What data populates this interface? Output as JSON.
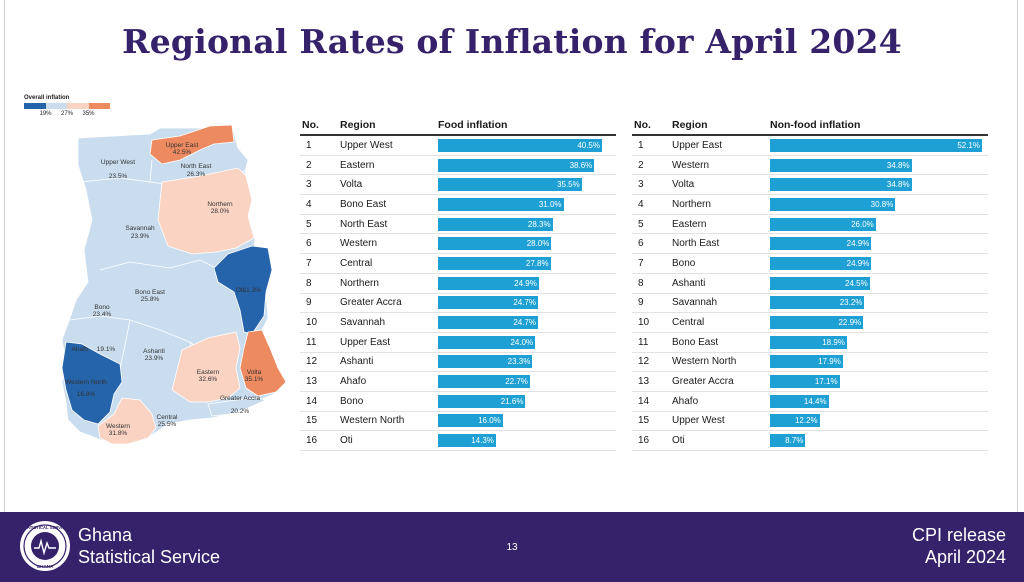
{
  "title": "Regional Rates of Inflation for April 2024",
  "legend": {
    "title": "Overall inflation",
    "ticks": [
      "19%",
      "27%",
      "35%"
    ],
    "colors": [
      "#2563ab",
      "#c9ddee",
      "#fad3c2",
      "#ee8a60"
    ]
  },
  "map_labels": [
    {
      "name": "Upper West",
      "value": "23.5%"
    },
    {
      "name": "Upper East",
      "value": "42.5%"
    },
    {
      "name": "North East",
      "value": "26.3%"
    },
    {
      "name": "Northern",
      "value": "28.0%"
    },
    {
      "name": "Savannah",
      "value": "23.9%"
    },
    {
      "name": "Oti",
      "value": "11.3%"
    },
    {
      "name": "Bono East",
      "value": "25.8%"
    },
    {
      "name": "Bono",
      "value": "23.4%"
    },
    {
      "name": "Ahafo",
      "value": "19.1%"
    },
    {
      "name": "Ashanti",
      "value": "23.9%"
    },
    {
      "name": "Western North",
      "value": "16.8%"
    },
    {
      "name": "Eastern",
      "value": "32.6%"
    },
    {
      "name": "Volta",
      "value": "35.1%"
    },
    {
      "name": "Greater Accra",
      "value": "20.2%"
    },
    {
      "name": "Central",
      "value": "25.5%"
    },
    {
      "name": "Western",
      "value": "31.8%"
    }
  ],
  "chart_data": [
    {
      "type": "bar",
      "title": "Food inflation",
      "headers": [
        "No.",
        "Region",
        "Food inflation"
      ],
      "categories": [
        "Upper West",
        "Eastern",
        "Volta",
        "Bono East",
        "North East",
        "Western",
        "Central",
        "Northern",
        "Greater Accra",
        "Savannah",
        "Upper East",
        "Ashanti",
        "Ahafo",
        "Bono",
        "Western North",
        "Oti"
      ],
      "values": [
        40.5,
        38.6,
        35.5,
        31.0,
        28.3,
        28.0,
        27.8,
        24.9,
        24.7,
        24.7,
        24.0,
        23.3,
        22.7,
        21.6,
        16.0,
        14.3
      ],
      "labels": [
        "40.5%",
        "38.6%",
        "35.5%",
        "31.0%",
        "28.3%",
        "28.0%",
        "27.8%",
        "24.9%",
        "24.7%",
        "24.7%",
        "24.0%",
        "23.3%",
        "22.7%",
        "21.6%",
        "16.0%",
        "14.3%"
      ],
      "xlim": [
        0,
        40.5
      ]
    },
    {
      "type": "bar",
      "title": "Non-food inflation",
      "headers": [
        "No.",
        "Region",
        "Non-food inflation"
      ],
      "categories": [
        "Upper East",
        "Western",
        "Volta",
        "Northern",
        "Eastern",
        "North East",
        "Bono",
        "Ashanti",
        "Savannah",
        "Central",
        "Bono East",
        "Western North",
        "Greater Accra",
        "Ahafo",
        "Upper West",
        "Oti"
      ],
      "values": [
        52.1,
        34.8,
        34.8,
        30.8,
        26.0,
        24.9,
        24.9,
        24.5,
        23.2,
        22.9,
        18.9,
        17.9,
        17.1,
        14.4,
        12.2,
        8.7
      ],
      "labels": [
        "52.1%",
        "34.8%",
        "34.8%",
        "30.8%",
        "26.0%",
        "24.9%",
        "24.9%",
        "24.5%",
        "23.2%",
        "22.9%",
        "18.9%",
        "17.9%",
        "17.1%",
        "14.4%",
        "12.2%",
        "8.7%"
      ],
      "xlim": [
        0,
        52.1
      ]
    }
  ],
  "footer": {
    "org_line1": "Ghana",
    "org_line2": "Statistical Service",
    "page": "13",
    "release_line1": "CPI release",
    "release_line2": "April  2024",
    "logo_top": "STATISTICAL SERVICE",
    "logo_bottom": "GHANA"
  }
}
